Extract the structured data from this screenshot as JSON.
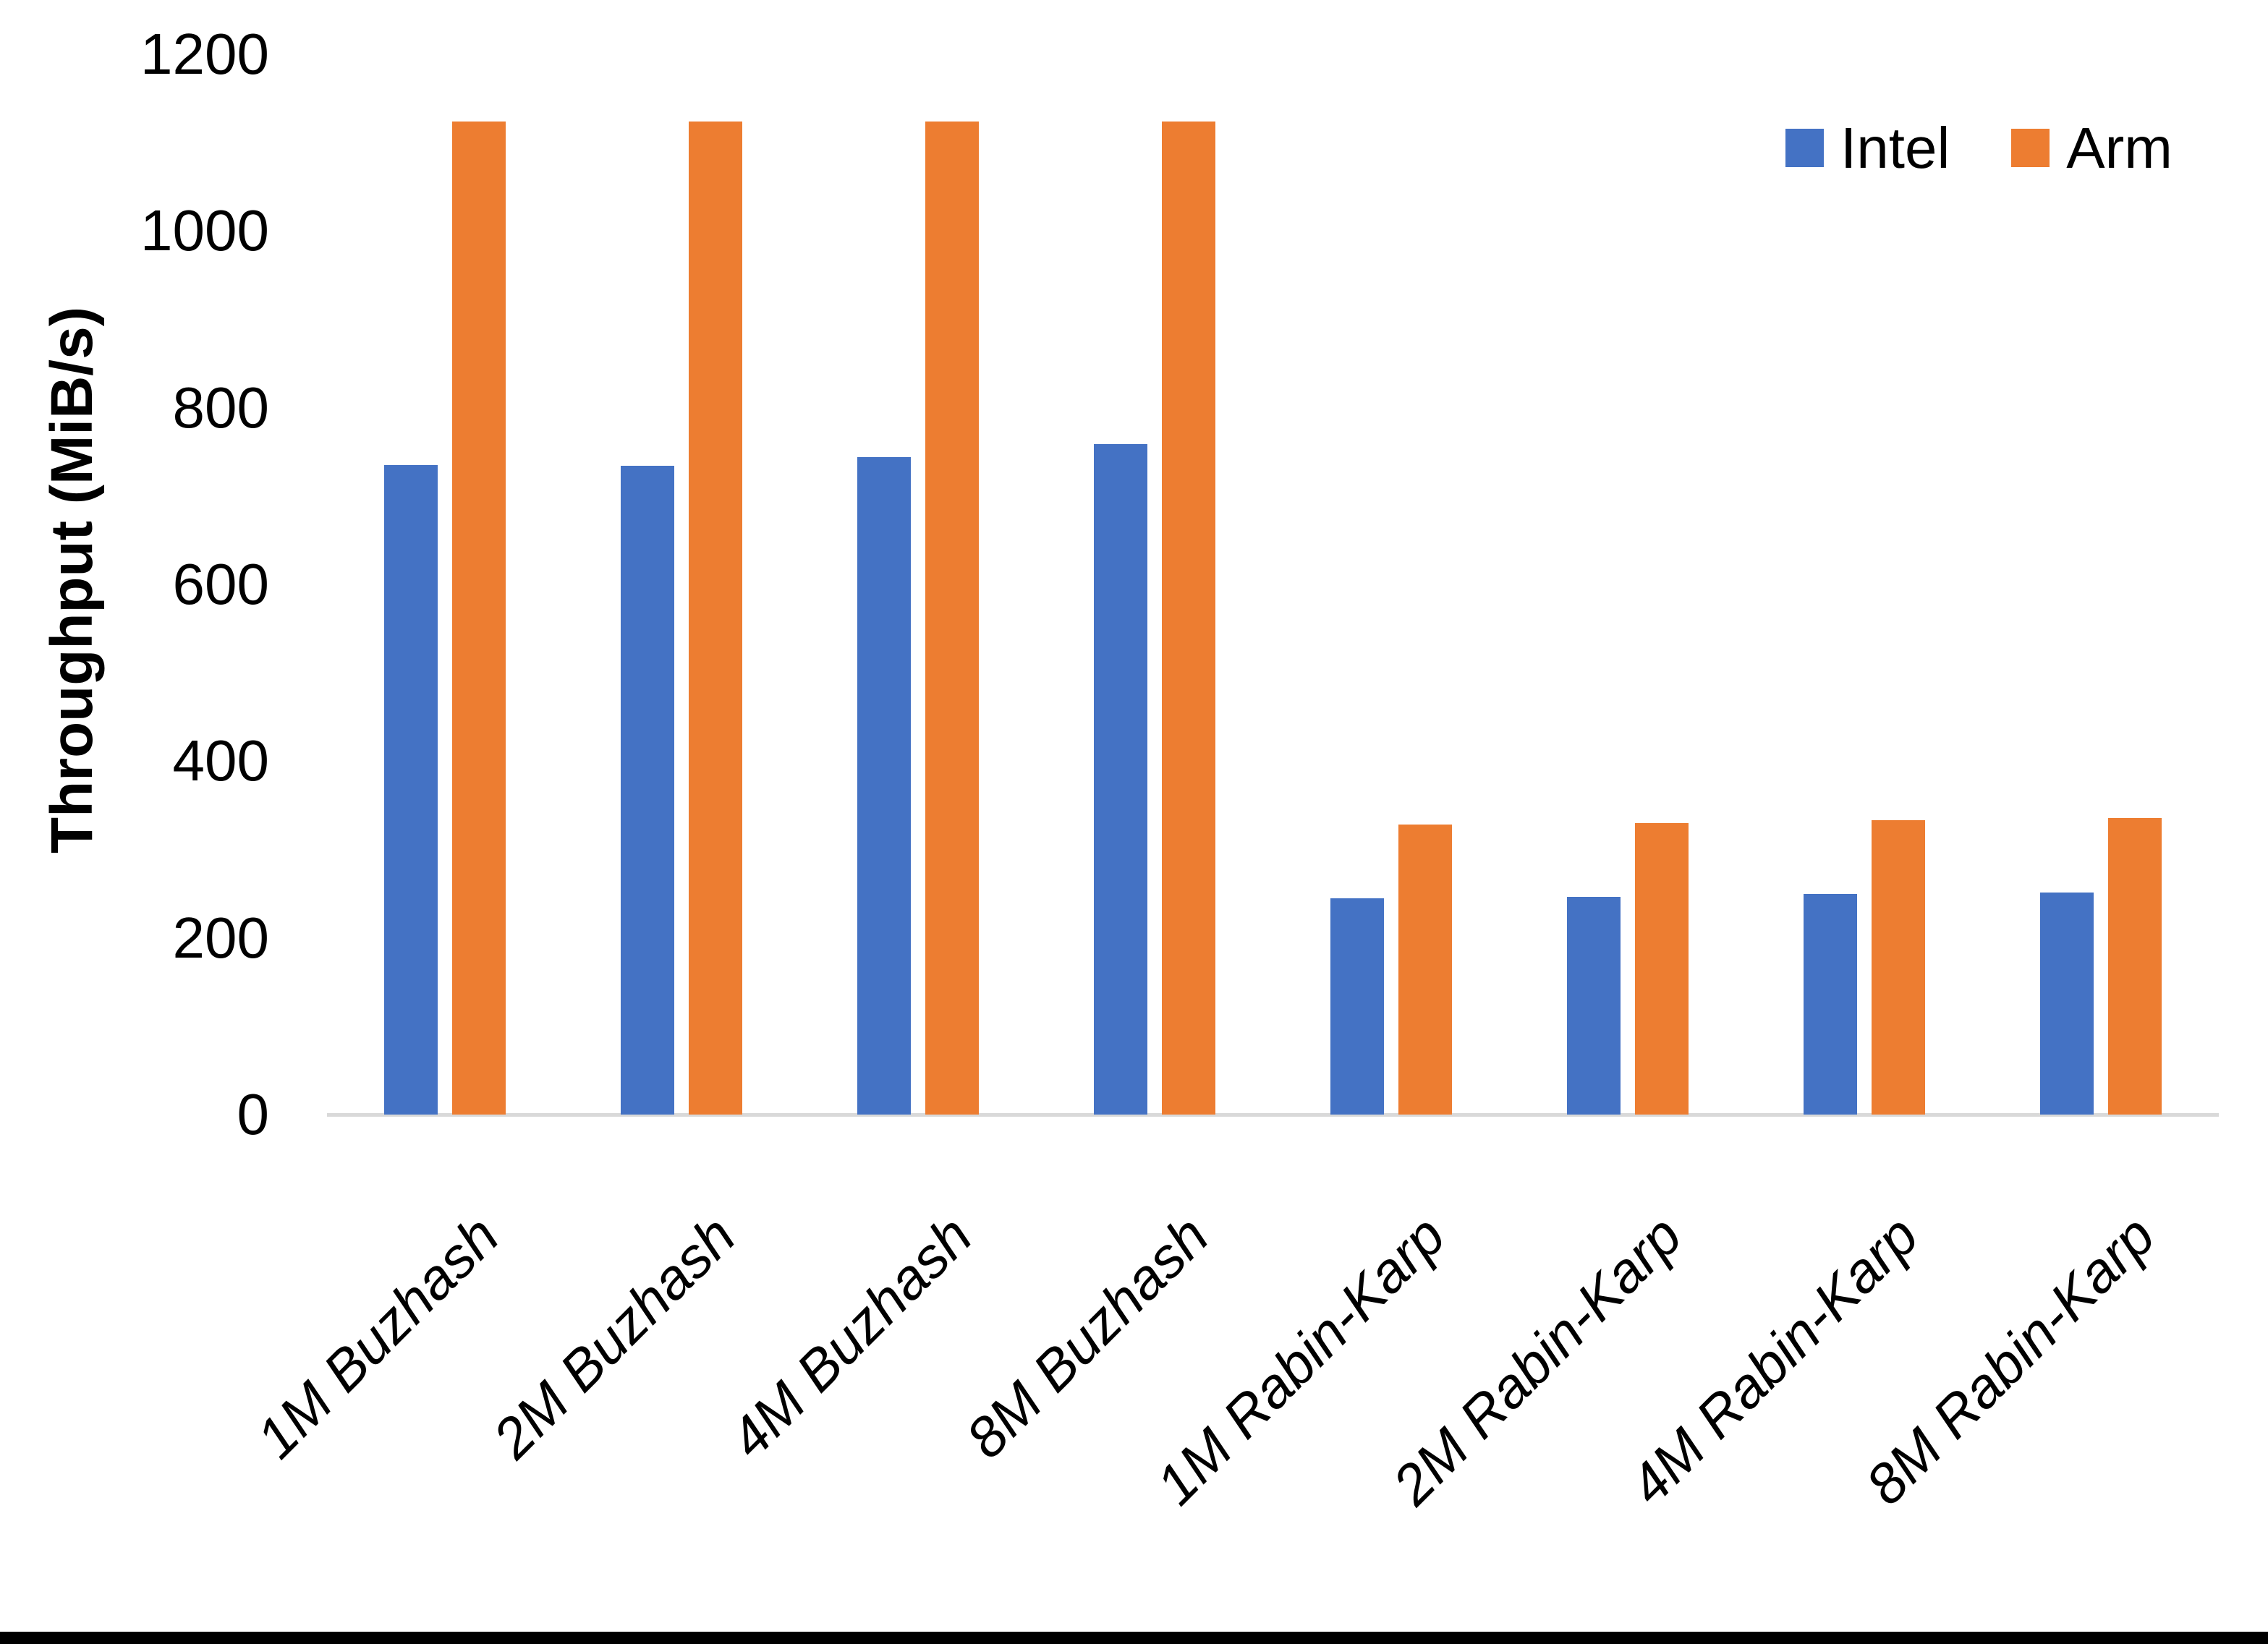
{
  "chart_data": {
    "type": "bar",
    "title": "",
    "xlabel": "",
    "ylabel": "Throughput (MiB/s)",
    "ylim": [
      0,
      1200
    ],
    "yticks": [
      0,
      200,
      400,
      600,
      800,
      1000,
      1200
    ],
    "grid": false,
    "legend_position": "top-right",
    "categories": [
      "1M Buzhash",
      "2M Buzhash",
      "4M Buzhash",
      "8M Buzhash",
      "1M Rabin-Karp",
      "2M Rabin-Karp",
      "4M Rabin-Karp",
      "8M Rabin-Karp"
    ],
    "series": [
      {
        "name": "Intel",
        "color": "#4472C4",
        "values": [
          735,
          734,
          744,
          759,
          245,
          246,
          250,
          251
        ]
      },
      {
        "name": "Arm",
        "color": "#ED7D31",
        "values": [
          1124,
          1124,
          1124,
          1124,
          328,
          330,
          333,
          336
        ]
      }
    ],
    "axis_line_color": "#D9D9D9",
    "bottom_border_color": "#000000"
  }
}
